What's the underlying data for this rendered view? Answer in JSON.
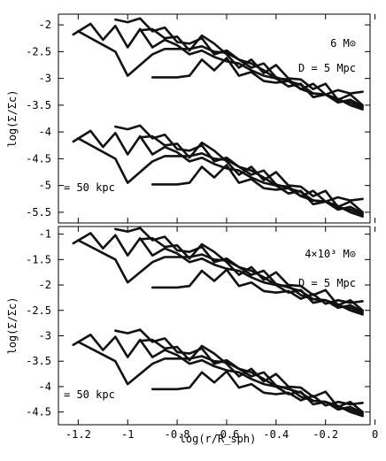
{
  "chart_data": [
    {
      "type": "line",
      "panel": "top",
      "xlabel": "",
      "ylabel": "log(Σ/Σc)",
      "xlim": [
        -1.28,
        -0.02
      ],
      "ylim": [
        -5.7,
        -1.8
      ],
      "yticks": [
        -2,
        -2.5,
        -3,
        -3.5,
        -4,
        -4.5,
        -5,
        -5.5
      ],
      "ytick_labels": [
        "-2",
        "-2.5",
        "-3",
        "-3.5",
        "-4",
        "-4.5",
        "-5",
        "-5.5"
      ],
      "annotations": [
        {
          "id": "mass",
          "text": "6  M⊙"
        },
        {
          "id": "distance",
          "text": "D = 5 Mpc"
        },
        {
          "id": "scale",
          "text": "= 50 kpc"
        }
      ],
      "series": [
        {
          "x": [
            -1.22,
            -1.15,
            -1.1,
            -1.05,
            -1.0,
            -0.95,
            -0.9,
            -0.85,
            -0.8,
            -0.75,
            -0.7,
            -0.65,
            -0.6,
            -0.55,
            -0.5,
            -0.45,
            -0.4,
            -0.35,
            -0.3,
            -0.25,
            -0.2,
            -0.15,
            -0.1,
            -0.05
          ],
          "y": [
            -2.18,
            -1.98,
            -2.28,
            -2.02,
            -2.42,
            -2.08,
            -2.42,
            -2.28,
            -2.38,
            -2.55,
            -2.48,
            -2.6,
            -2.68,
            -2.72,
            -2.85,
            -2.95,
            -3.0,
            -3.15,
            -3.1,
            -3.35,
            -3.3,
            -3.45,
            -3.4,
            -3.52
          ]
        },
        {
          "x": [
            -1.2,
            -1.05,
            -1.0,
            -0.9,
            -0.85,
            -0.8,
            -0.75,
            -0.7,
            -0.65,
            -0.6,
            -0.55,
            -0.5,
            -0.45,
            -0.4,
            -0.35,
            -0.3,
            -0.25,
            -0.2,
            -0.15,
            -0.1,
            -0.05
          ],
          "y": [
            -2.12,
            -2.5,
            -2.95,
            -2.55,
            -2.45,
            -2.45,
            -2.45,
            -2.4,
            -2.5,
            -2.52,
            -2.65,
            -2.72,
            -2.85,
            -3.0,
            -3.02,
            -3.2,
            -3.28,
            -3.3,
            -3.38,
            -3.5,
            -3.58
          ]
        },
        {
          "x": [
            -1.05,
            -1.0,
            -0.95,
            -0.9,
            -0.85,
            -0.8,
            -0.75,
            -0.7,
            -0.65,
            -0.6,
            -0.55,
            -0.5,
            -0.45,
            -0.4,
            -0.35,
            -0.3,
            -0.25,
            -0.2,
            -0.15,
            -0.1,
            -0.05
          ],
          "y": [
            -1.9,
            -1.95,
            -1.88,
            -2.12,
            -2.05,
            -2.32,
            -2.35,
            -2.25,
            -2.55,
            -2.48,
            -2.65,
            -2.8,
            -2.72,
            -2.98,
            -3.05,
            -3.12,
            -3.28,
            -3.3,
            -3.42,
            -3.45,
            -3.55
          ]
        },
        {
          "x": [
            -0.95,
            -0.9,
            -0.85,
            -0.8,
            -0.75,
            -0.7,
            -0.65,
            -0.6,
            -0.55,
            -0.5,
            -0.45,
            -0.4,
            -0.35,
            -0.3,
            -0.25,
            -0.2,
            -0.15,
            -0.1,
            -0.05
          ],
          "y": [
            -2.1,
            -2.08,
            -2.25,
            -2.22,
            -2.48,
            -2.2,
            -2.35,
            -2.55,
            -2.8,
            -2.65,
            -2.9,
            -2.75,
            -3.0,
            -3.02,
            -3.2,
            -3.1,
            -3.4,
            -3.3,
            -3.5
          ]
        },
        {
          "x": [
            -0.9,
            -0.8,
            -0.75,
            -0.7,
            -0.65,
            -0.6,
            -0.55,
            -0.5,
            -0.45,
            -0.4,
            -0.35,
            -0.3,
            -0.25,
            -0.2,
            -0.15,
            -0.1,
            -0.05
          ],
          "y": [
            -2.98,
            -2.98,
            -2.95,
            -2.65,
            -2.85,
            -2.62,
            -2.95,
            -2.88,
            -3.05,
            -3.08,
            -3.05,
            -3.2,
            -3.1,
            -3.3,
            -3.22,
            -3.28,
            -3.25
          ]
        },
        {
          "x": [
            -1.22,
            -1.15,
            -1.1,
            -1.05,
            -1.0,
            -0.95,
            -0.9,
            -0.85,
            -0.8,
            -0.75,
            -0.7,
            -0.65,
            -0.6,
            -0.55,
            -0.5,
            -0.45,
            -0.4,
            -0.35,
            -0.3,
            -0.25,
            -0.2,
            -0.15,
            -0.1,
            -0.05
          ],
          "y": [
            -4.18,
            -3.98,
            -4.28,
            -4.02,
            -4.42,
            -4.08,
            -4.42,
            -4.28,
            -4.38,
            -4.55,
            -4.48,
            -4.6,
            -4.68,
            -4.72,
            -4.85,
            -4.95,
            -5.0,
            -5.15,
            -5.1,
            -5.35,
            -5.3,
            -5.45,
            -5.4,
            -5.52
          ]
        },
        {
          "x": [
            -1.2,
            -1.05,
            -1.0,
            -0.9,
            -0.85,
            -0.8,
            -0.75,
            -0.7,
            -0.65,
            -0.6,
            -0.55,
            -0.5,
            -0.45,
            -0.4,
            -0.35,
            -0.3,
            -0.25,
            -0.2,
            -0.15,
            -0.1,
            -0.05
          ],
          "y": [
            -4.12,
            -4.5,
            -4.95,
            -4.55,
            -4.45,
            -4.45,
            -4.45,
            -4.4,
            -4.5,
            -4.52,
            -4.65,
            -4.72,
            -4.85,
            -5.0,
            -5.02,
            -5.2,
            -5.28,
            -5.3,
            -5.38,
            -5.5,
            -5.58
          ]
        },
        {
          "x": [
            -1.05,
            -1.0,
            -0.95,
            -0.9,
            -0.85,
            -0.8,
            -0.75,
            -0.7,
            -0.65,
            -0.6,
            -0.55,
            -0.5,
            -0.45,
            -0.4,
            -0.35,
            -0.3,
            -0.25,
            -0.2,
            -0.15,
            -0.1,
            -0.05
          ],
          "y": [
            -3.9,
            -3.95,
            -3.88,
            -4.12,
            -4.05,
            -4.32,
            -4.35,
            -4.25,
            -4.55,
            -4.48,
            -4.65,
            -4.8,
            -4.72,
            -4.98,
            -5.05,
            -5.12,
            -5.28,
            -5.3,
            -5.42,
            -5.45,
            -5.55
          ]
        },
        {
          "x": [
            -0.95,
            -0.9,
            -0.85,
            -0.8,
            -0.75,
            -0.7,
            -0.65,
            -0.6,
            -0.55,
            -0.5,
            -0.45,
            -0.4,
            -0.35,
            -0.3,
            -0.25,
            -0.2,
            -0.15,
            -0.1,
            -0.05
          ],
          "y": [
            -4.1,
            -4.08,
            -4.25,
            -4.22,
            -4.48,
            -4.2,
            -4.35,
            -4.55,
            -4.8,
            -4.65,
            -4.9,
            -4.75,
            -5.0,
            -5.02,
            -5.2,
            -5.1,
            -5.4,
            -5.3,
            -5.5
          ]
        },
        {
          "x": [
            -0.9,
            -0.8,
            -0.75,
            -0.7,
            -0.65,
            -0.6,
            -0.55,
            -0.5,
            -0.45,
            -0.4,
            -0.35,
            -0.3,
            -0.25,
            -0.2,
            -0.15,
            -0.1,
            -0.05
          ],
          "y": [
            -4.98,
            -4.98,
            -4.95,
            -4.65,
            -4.85,
            -4.62,
            -4.95,
            -4.88,
            -5.05,
            -5.08,
            -5.05,
            -5.2,
            -5.1,
            -5.3,
            -5.22,
            -5.28,
            -5.25
          ]
        }
      ]
    },
    {
      "type": "line",
      "panel": "bottom",
      "xlabel": "log(r/R_sph)",
      "ylabel": "log(Σ/Σc)",
      "xlim": [
        -1.28,
        -0.02
      ],
      "ylim": [
        -4.75,
        -0.85
      ],
      "xticks": [
        -1.2,
        -1,
        -0.8,
        -0.6,
        -0.4,
        -0.2,
        0
      ],
      "xtick_labels": [
        "-1.2",
        "-1",
        "-0.8",
        "-0.6",
        "-0.4",
        "-0.2",
        "0"
      ],
      "yticks": [
        -1,
        -1.5,
        -2,
        -2.5,
        -3,
        -3.5,
        -4,
        -4.5
      ],
      "ytick_labels": [
        "-1",
        "-1.5",
        "-2",
        "-2.5",
        "-3",
        "-3.5",
        "-4",
        "-4.5"
      ],
      "annotations": [
        {
          "id": "mass",
          "text": "4×10³ M⊙"
        },
        {
          "id": "distance",
          "text": "D = 5 Mpc"
        },
        {
          "id": "scale",
          "text": "= 50 kpc"
        }
      ],
      "series": [
        {
          "x": [
            -1.22,
            -1.15,
            -1.1,
            -1.05,
            -1.0,
            -0.95,
            -0.9,
            -0.85,
            -0.8,
            -0.75,
            -0.7,
            -0.65,
            -0.6,
            -0.55,
            -0.5,
            -0.45,
            -0.4,
            -0.35,
            -0.3,
            -0.25,
            -0.2,
            -0.15,
            -0.1,
            -0.05
          ],
          "y": [
            -1.18,
            -0.98,
            -1.28,
            -1.02,
            -1.42,
            -1.08,
            -1.42,
            -1.28,
            -1.38,
            -1.55,
            -1.48,
            -1.6,
            -1.68,
            -1.72,
            -1.85,
            -1.95,
            -2.0,
            -2.15,
            -2.1,
            -2.35,
            -2.3,
            -2.45,
            -2.4,
            -2.52
          ]
        },
        {
          "x": [
            -1.2,
            -1.05,
            -1.0,
            -0.9,
            -0.85,
            -0.8,
            -0.75,
            -0.7,
            -0.65,
            -0.6,
            -0.55,
            -0.5,
            -0.45,
            -0.4,
            -0.35,
            -0.3,
            -0.25,
            -0.2,
            -0.15,
            -0.1,
            -0.05
          ],
          "y": [
            -1.12,
            -1.5,
            -1.95,
            -1.55,
            -1.45,
            -1.45,
            -1.45,
            -1.4,
            -1.5,
            -1.52,
            -1.65,
            -1.72,
            -1.85,
            -2.0,
            -2.02,
            -2.2,
            -2.28,
            -2.3,
            -2.38,
            -2.5,
            -2.58
          ]
        },
        {
          "x": [
            -1.05,
            -1.0,
            -0.95,
            -0.9,
            -0.85,
            -0.8,
            -0.75,
            -0.7,
            -0.65,
            -0.6,
            -0.55,
            -0.5,
            -0.45,
            -0.4,
            -0.35,
            -0.3,
            -0.25,
            -0.2,
            -0.15,
            -0.1,
            -0.05
          ],
          "y": [
            -0.9,
            -0.95,
            -0.88,
            -1.12,
            -1.05,
            -1.32,
            -1.35,
            -1.25,
            -1.55,
            -1.48,
            -1.65,
            -1.8,
            -1.72,
            -1.98,
            -2.05,
            -2.12,
            -2.28,
            -2.3,
            -2.42,
            -2.45,
            -2.55
          ]
        },
        {
          "x": [
            -0.95,
            -0.9,
            -0.85,
            -0.8,
            -0.75,
            -0.7,
            -0.65,
            -0.6,
            -0.55,
            -0.5,
            -0.45,
            -0.4,
            -0.35,
            -0.3,
            -0.25,
            -0.2,
            -0.15,
            -0.1,
            -0.05
          ],
          "y": [
            -1.1,
            -1.08,
            -1.25,
            -1.22,
            -1.48,
            -1.2,
            -1.35,
            -1.55,
            -1.8,
            -1.65,
            -1.9,
            -1.75,
            -2.0,
            -2.02,
            -2.2,
            -2.1,
            -2.4,
            -2.3,
            -2.5
          ]
        },
        {
          "x": [
            -0.9,
            -0.8,
            -0.75,
            -0.7,
            -0.65,
            -0.6,
            -0.55,
            -0.5,
            -0.45,
            -0.4,
            -0.35,
            -0.3,
            -0.25,
            -0.2,
            -0.15,
            -0.1,
            -0.05
          ],
          "y": [
            -2.05,
            -2.05,
            -2.02,
            -1.72,
            -1.92,
            -1.7,
            -2.02,
            -1.95,
            -2.12,
            -2.15,
            -2.12,
            -2.27,
            -2.18,
            -2.37,
            -2.3,
            -2.35,
            -2.32
          ]
        },
        {
          "x": [
            -1.22,
            -1.15,
            -1.1,
            -1.05,
            -1.0,
            -0.95,
            -0.9,
            -0.85,
            -0.8,
            -0.75,
            -0.7,
            -0.65,
            -0.6,
            -0.55,
            -0.5,
            -0.45,
            -0.4,
            -0.35,
            -0.3,
            -0.25,
            -0.2,
            -0.15,
            -0.1,
            -0.05
          ],
          "y": [
            -3.18,
            -2.98,
            -3.28,
            -3.02,
            -3.42,
            -3.08,
            -3.42,
            -3.28,
            -3.38,
            -3.55,
            -3.48,
            -3.6,
            -3.68,
            -3.72,
            -3.85,
            -3.95,
            -4.0,
            -4.15,
            -4.1,
            -4.35,
            -4.3,
            -4.45,
            -4.4,
            -4.52
          ]
        },
        {
          "x": [
            -1.2,
            -1.05,
            -1.0,
            -0.9,
            -0.85,
            -0.8,
            -0.75,
            -0.7,
            -0.65,
            -0.6,
            -0.55,
            -0.5,
            -0.45,
            -0.4,
            -0.35,
            -0.3,
            -0.25,
            -0.2,
            -0.15,
            -0.1,
            -0.05
          ],
          "y": [
            -3.12,
            -3.5,
            -3.95,
            -3.55,
            -3.45,
            -3.45,
            -3.45,
            -3.4,
            -3.5,
            -3.52,
            -3.65,
            -3.72,
            -3.85,
            -4.0,
            -4.02,
            -4.2,
            -4.28,
            -4.3,
            -4.38,
            -4.5,
            -4.58
          ]
        },
        {
          "x": [
            -1.05,
            -1.0,
            -0.95,
            -0.9,
            -0.85,
            -0.8,
            -0.75,
            -0.7,
            -0.65,
            -0.6,
            -0.55,
            -0.5,
            -0.45,
            -0.4,
            -0.35,
            -0.3,
            -0.25,
            -0.2,
            -0.15,
            -0.1,
            -0.05
          ],
          "y": [
            -2.9,
            -2.95,
            -2.88,
            -3.12,
            -3.05,
            -3.32,
            -3.35,
            -3.25,
            -3.55,
            -3.48,
            -3.65,
            -3.8,
            -3.72,
            -3.98,
            -4.05,
            -4.12,
            -4.28,
            -4.3,
            -4.42,
            -4.45,
            -4.55
          ]
        },
        {
          "x": [
            -0.95,
            -0.9,
            -0.85,
            -0.8,
            -0.75,
            -0.7,
            -0.65,
            -0.6,
            -0.55,
            -0.5,
            -0.45,
            -0.4,
            -0.35,
            -0.3,
            -0.25,
            -0.2,
            -0.15,
            -0.1,
            -0.05
          ],
          "y": [
            -3.1,
            -3.08,
            -3.25,
            -3.22,
            -3.48,
            -3.2,
            -3.35,
            -3.55,
            -3.8,
            -3.65,
            -3.9,
            -3.75,
            -4.0,
            -4.02,
            -4.2,
            -4.1,
            -4.4,
            -4.3,
            -4.5
          ]
        },
        {
          "x": [
            -0.9,
            -0.8,
            -0.75,
            -0.7,
            -0.65,
            -0.6,
            -0.55,
            -0.5,
            -0.45,
            -0.4,
            -0.35,
            -0.3,
            -0.25,
            -0.2,
            -0.15,
            -0.1,
            -0.05
          ],
          "y": [
            -4.05,
            -4.05,
            -4.02,
            -3.72,
            -3.92,
            -3.7,
            -4.02,
            -3.95,
            -4.12,
            -4.15,
            -4.12,
            -4.27,
            -4.18,
            -4.37,
            -4.3,
            -4.35,
            -4.32
          ]
        }
      ]
    }
  ]
}
